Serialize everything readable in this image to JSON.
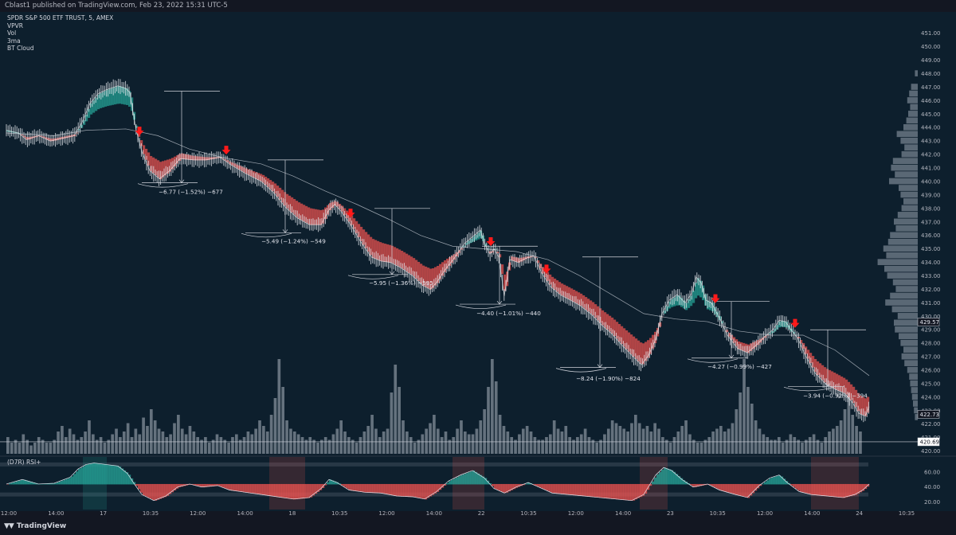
{
  "header": {
    "published": "Cblast1 published on TradingView.com, Feb 23, 2022 15:31 UTC-5"
  },
  "legend": [
    "SPDR S&P 500 ETF TRUST, 5, AMEX",
    "VPVR",
    "Vol",
    "3ma",
    "BT Cloud"
  ],
  "rsi_label": "(D7R) RSI+",
  "brand": "TradingView",
  "colors": {
    "background": "#0d1f2d",
    "bull": "#26a69a",
    "bear": "#ef5350",
    "arrow": "#ff1a1a",
    "line": "#cfd4dc"
  },
  "chart_data": {
    "type": "line",
    "price_axis": {
      "ylim": [
        419.8,
        452.4
      ],
      "ticks": [
        "451.00",
        "450.00",
        "449.00",
        "448.00",
        "447.00",
        "446.00",
        "445.00",
        "444.00",
        "443.00",
        "442.00",
        "441.00",
        "440.00",
        "439.00",
        "438.00",
        "437.00",
        "436.00",
        "435.00",
        "434.00",
        "433.00",
        "432.00",
        "431.00",
        "430.00",
        "429.00",
        "428.00",
        "427.00",
        "426.00",
        "425.00",
        "424.00",
        "423.00",
        "422.00",
        "421.00",
        "420.00"
      ]
    },
    "time_axis": {
      "ticks": [
        "12:00",
        "14:00",
        "17",
        "10:35",
        "12:00",
        "14:00",
        "18",
        "10:35",
        "12:00",
        "14:00",
        "22",
        "10:35",
        "12:00",
        "14:00",
        "23",
        "10:35",
        "12:00",
        "14:00",
        "24",
        "10:35"
      ]
    },
    "rsi_axis": {
      "ylim": [
        10,
        80
      ],
      "ticks": [
        "60.00",
        "40.00",
        "20.00"
      ]
    },
    "price_labels": [
      {
        "value": "429.57",
        "price": 429.57
      },
      {
        "value": "422.73",
        "price": 422.73
      },
      {
        "value": "420.69",
        "price": 420.69
      }
    ],
    "price_series": [
      [
        0,
        443.8
      ],
      [
        15,
        443.6
      ],
      [
        25,
        443.1
      ],
      [
        40,
        443.4
      ],
      [
        55,
        443.0
      ],
      [
        70,
        443.2
      ],
      [
        85,
        443.4
      ],
      [
        95,
        444.4
      ],
      [
        105,
        445.8
      ],
      [
        115,
        446.5
      ],
      [
        125,
        446.8
      ],
      [
        140,
        447.1
      ],
      [
        150,
        446.9
      ],
      [
        155,
        446.6
      ],
      [
        158,
        445.5
      ],
      [
        163,
        443.8
      ],
      [
        170,
        442.2
      ],
      [
        180,
        440.8
      ],
      [
        192,
        440.2
      ],
      [
        205,
        440.8
      ],
      [
        218,
        441.7
      ],
      [
        235,
        441.6
      ],
      [
        250,
        441.6
      ],
      [
        268,
        441.8
      ],
      [
        280,
        441.3
      ],
      [
        300,
        440.6
      ],
      [
        320,
        440.0
      ],
      [
        335,
        439.2
      ],
      [
        350,
        438.1
      ],
      [
        365,
        437.3
      ],
      [
        380,
        436.8
      ],
      [
        395,
        436.8
      ],
      [
        405,
        437.9
      ],
      [
        412,
        438.3
      ],
      [
        420,
        437.8
      ],
      [
        432,
        436.8
      ],
      [
        445,
        435.5
      ],
      [
        458,
        434.4
      ],
      [
        470,
        434.1
      ],
      [
        482,
        434.0
      ],
      [
        495,
        433.6
      ],
      [
        510,
        433.0
      ],
      [
        522,
        432.3
      ],
      [
        532,
        432.0
      ],
      [
        540,
        432.5
      ],
      [
        550,
        433.4
      ],
      [
        562,
        434.3
      ],
      [
        575,
        435.4
      ],
      [
        585,
        435.9
      ],
      [
        595,
        436.4
      ],
      [
        600,
        435.4
      ],
      [
        607,
        434.6
      ],
      [
        612,
        435.0
      ],
      [
        618,
        434.4
      ],
      [
        625,
        431.5
      ],
      [
        632,
        434.2
      ],
      [
        642,
        434.0
      ],
      [
        652,
        434.3
      ],
      [
        662,
        434.5
      ],
      [
        672,
        433.2
      ],
      [
        683,
        432.2
      ],
      [
        695,
        431.6
      ],
      [
        708,
        431.2
      ],
      [
        720,
        430.8
      ],
      [
        735,
        430.1
      ],
      [
        748,
        429.3
      ],
      [
        760,
        428.7
      ],
      [
        772,
        427.9
      ],
      [
        785,
        427.1
      ],
      [
        797,
        426.4
      ],
      [
        806,
        427.1
      ],
      [
        815,
        428.3
      ],
      [
        823,
        430.2
      ],
      [
        832,
        431.2
      ],
      [
        842,
        431.6
      ],
      [
        852,
        431.0
      ],
      [
        860,
        431.7
      ],
      [
        866,
        432.9
      ],
      [
        872,
        432.5
      ],
      [
        878,
        431.2
      ],
      [
        885,
        431.0
      ],
      [
        895,
        429.9
      ],
      [
        905,
        428.6
      ],
      [
        918,
        427.6
      ],
      [
        930,
        427.3
      ],
      [
        942,
        427.9
      ],
      [
        952,
        428.5
      ],
      [
        962,
        429.0
      ],
      [
        970,
        429.7
      ],
      [
        978,
        429.6
      ],
      [
        985,
        429.0
      ],
      [
        993,
        428.4
      ],
      [
        1003,
        427.1
      ],
      [
        1015,
        425.8
      ],
      [
        1028,
        425.0
      ],
      [
        1040,
        424.6
      ],
      [
        1052,
        424.3
      ],
      [
        1062,
        423.6
      ],
      [
        1070,
        422.8
      ],
      [
        1078,
        422.6
      ],
      [
        1083,
        423.3
      ]
    ],
    "slow_ma": [
      [
        0,
        443.6
      ],
      [
        60,
        443.4
      ],
      [
        100,
        443.8
      ],
      [
        150,
        443.9
      ],
      [
        190,
        443.4
      ],
      [
        230,
        442.4
      ],
      [
        270,
        441.8
      ],
      [
        320,
        441.3
      ],
      [
        360,
        440.4
      ],
      [
        400,
        439.3
      ],
      [
        440,
        438.3
      ],
      [
        480,
        437.2
      ],
      [
        520,
        436.0
      ],
      [
        560,
        435.2
      ],
      [
        600,
        435.0
      ],
      [
        640,
        434.8
      ],
      [
        680,
        434.2
      ],
      [
        720,
        433.0
      ],
      [
        760,
        431.6
      ],
      [
        800,
        430.2
      ],
      [
        840,
        429.8
      ],
      [
        880,
        429.6
      ],
      [
        920,
        428.9
      ],
      [
        960,
        428.6
      ],
      [
        1000,
        428.6
      ],
      [
        1040,
        427.5
      ],
      [
        1083,
        425.6
      ]
    ],
    "annotations": [
      {
        "label": "−6.77 (−1.52%) −677",
        "price": 439.25,
        "x": 191
      },
      {
        "label": "−5.49 (−1.24%) −549",
        "price": 435.6,
        "x": 320
      },
      {
        "label": "−5.95 (−1.36%) −595",
        "price": 432.5,
        "x": 455
      },
      {
        "label": "−4.40 (−1.01%) −440",
        "price": 430.25,
        "x": 590
      },
      {
        "label": "−8.24 (−1.90%) −824",
        "price": 425.4,
        "x": 715
      },
      {
        "label": "−4.27 (−0.99%) −427",
        "price": 426.3,
        "x": 880
      },
      {
        "label": "−3.94 (−0.92%) −394",
        "price": 424.15,
        "x": 1000
      }
    ],
    "measure_lines": [
      {
        "x": 220,
        "top": 446.7,
        "bottom": 439.9
      },
      {
        "x": 350,
        "top": 441.6,
        "bottom": 436.2
      },
      {
        "x": 484,
        "top": 438.0,
        "bottom": 433.1
      },
      {
        "x": 619,
        "top": 435.2,
        "bottom": 430.9
      },
      {
        "x": 745,
        "top": 434.4,
        "bottom": 426.2
      },
      {
        "x": 910,
        "top": 431.1,
        "bottom": 426.9
      },
      {
        "x": 1031,
        "top": 429.0,
        "bottom": 424.8
      }
    ],
    "arrows": [
      167,
      276,
      432,
      608,
      678,
      890,
      990
    ],
    "rsi_series": [
      [
        0,
        44
      ],
      [
        20,
        50
      ],
      [
        40,
        44
      ],
      [
        60,
        45
      ],
      [
        80,
        53
      ],
      [
        90,
        64
      ],
      [
        100,
        70
      ],
      [
        110,
        72
      ],
      [
        125,
        70
      ],
      [
        140,
        68
      ],
      [
        152,
        58
      ],
      [
        160,
        45
      ],
      [
        170,
        30
      ],
      [
        185,
        22
      ],
      [
        200,
        28
      ],
      [
        215,
        40
      ],
      [
        230,
        44
      ],
      [
        245,
        40
      ],
      [
        265,
        42
      ],
      [
        280,
        36
      ],
      [
        300,
        33
      ],
      [
        320,
        30
      ],
      [
        340,
        27
      ],
      [
        360,
        24
      ],
      [
        380,
        26
      ],
      [
        395,
        38
      ],
      [
        405,
        50
      ],
      [
        415,
        46
      ],
      [
        430,
        36
      ],
      [
        450,
        33
      ],
      [
        470,
        32
      ],
      [
        490,
        28
      ],
      [
        510,
        27
      ],
      [
        525,
        24
      ],
      [
        540,
        34
      ],
      [
        555,
        48
      ],
      [
        570,
        56
      ],
      [
        585,
        62
      ],
      [
        600,
        52
      ],
      [
        612,
        38
      ],
      [
        625,
        32
      ],
      [
        640,
        40
      ],
      [
        655,
        46
      ],
      [
        668,
        40
      ],
      [
        685,
        32
      ],
      [
        705,
        30
      ],
      [
        725,
        28
      ],
      [
        745,
        26
      ],
      [
        765,
        24
      ],
      [
        785,
        22
      ],
      [
        800,
        30
      ],
      [
        815,
        56
      ],
      [
        825,
        66
      ],
      [
        835,
        62
      ],
      [
        848,
        50
      ],
      [
        862,
        40
      ],
      [
        880,
        44
      ],
      [
        895,
        36
      ],
      [
        915,
        30
      ],
      [
        930,
        26
      ],
      [
        945,
        42
      ],
      [
        958,
        52
      ],
      [
        970,
        56
      ],
      [
        980,
        46
      ],
      [
        995,
        34
      ],
      [
        1010,
        30
      ],
      [
        1030,
        28
      ],
      [
        1050,
        26
      ],
      [
        1065,
        30
      ],
      [
        1075,
        36
      ],
      [
        1083,
        44
      ]
    ],
    "volume": [
      6,
      4,
      5,
      4,
      7,
      5,
      3,
      4,
      6,
      5,
      4,
      4,
      5,
      8,
      10,
      6,
      9,
      7,
      5,
      6,
      8,
      12,
      7,
      5,
      6,
      4,
      5,
      7,
      9,
      6,
      8,
      11,
      6,
      9,
      7,
      13,
      10,
      16,
      12,
      9,
      8,
      6,
      7,
      11,
      14,
      9,
      7,
      10,
      8,
      6,
      5,
      6,
      4,
      5,
      7,
      6,
      5,
      4,
      6,
      7,
      5,
      6,
      8,
      7,
      9,
      12,
      10,
      8,
      14,
      20,
      34,
      24,
      12,
      9,
      8,
      7,
      6,
      5,
      6,
      5,
      4,
      5,
      6,
      5,
      7,
      9,
      12,
      8,
      6,
      5,
      4,
      6,
      8,
      10,
      14,
      9,
      6,
      8,
      9,
      22,
      32,
      24,
      12,
      8,
      6,
      4,
      5,
      7,
      9,
      11,
      14,
      9,
      6,
      8,
      5,
      6,
      9,
      12,
      8,
      7,
      7,
      9,
      12,
      16,
      24,
      34,
      26,
      14,
      10,
      8,
      6,
      5,
      7,
      9,
      10,
      8,
      6,
      5,
      5,
      6,
      7,
      12,
      9,
      8,
      10,
      6,
      5,
      6,
      7,
      9,
      6,
      5,
      4,
      5,
      7,
      9,
      12,
      11,
      10,
      9,
      8,
      11,
      14,
      11,
      9,
      10,
      8,
      11,
      9,
      6,
      5,
      4,
      6,
      8,
      10,
      12,
      7,
      5,
      4,
      4,
      5,
      6,
      8,
      9,
      10,
      8,
      9,
      11,
      16,
      22,
      34,
      24,
      18,
      12,
      9,
      7,
      6,
      5,
      5,
      6,
      4,
      5,
      7,
      6,
      5,
      4,
      5,
      6,
      7,
      5,
      4,
      6,
      8,
      9,
      10,
      12,
      16,
      22,
      14,
      10,
      8
    ],
    "vpvr": [
      [
        448.0,
        6
      ],
      [
        447.0,
        14
      ],
      [
        446.5,
        18
      ],
      [
        446.0,
        22
      ],
      [
        445.5,
        16
      ],
      [
        445.0,
        20
      ],
      [
        444.5,
        24
      ],
      [
        444.0,
        30
      ],
      [
        443.5,
        44
      ],
      [
        443.0,
        36
      ],
      [
        442.5,
        28
      ],
      [
        442.0,
        34
      ],
      [
        441.5,
        52
      ],
      [
        441.0,
        56
      ],
      [
        440.5,
        48
      ],
      [
        440.0,
        60
      ],
      [
        439.5,
        40
      ],
      [
        439.0,
        36
      ],
      [
        438.5,
        30
      ],
      [
        438.0,
        34
      ],
      [
        437.5,
        42
      ],
      [
        437.0,
        50
      ],
      [
        436.5,
        46
      ],
      [
        436.0,
        58
      ],
      [
        435.5,
        62
      ],
      [
        435.0,
        72
      ],
      [
        434.5,
        66
      ],
      [
        434.0,
        84
      ],
      [
        433.5,
        70
      ],
      [
        433.0,
        64
      ],
      [
        432.5,
        52
      ],
      [
        432.0,
        46
      ],
      [
        431.5,
        58
      ],
      [
        431.0,
        68
      ],
      [
        430.5,
        54
      ],
      [
        430.0,
        42
      ],
      [
        429.5,
        50
      ],
      [
        429.0,
        48
      ],
      [
        428.5,
        40
      ],
      [
        428.0,
        36
      ],
      [
        427.5,
        30
      ],
      [
        427.0,
        34
      ],
      [
        426.5,
        28
      ],
      [
        426.0,
        22
      ],
      [
        425.5,
        18
      ],
      [
        425.0,
        16
      ],
      [
        424.5,
        14
      ],
      [
        424.0,
        12
      ],
      [
        423.5,
        10
      ],
      [
        423.0,
        8
      ],
      [
        422.5,
        6
      ]
    ]
  }
}
